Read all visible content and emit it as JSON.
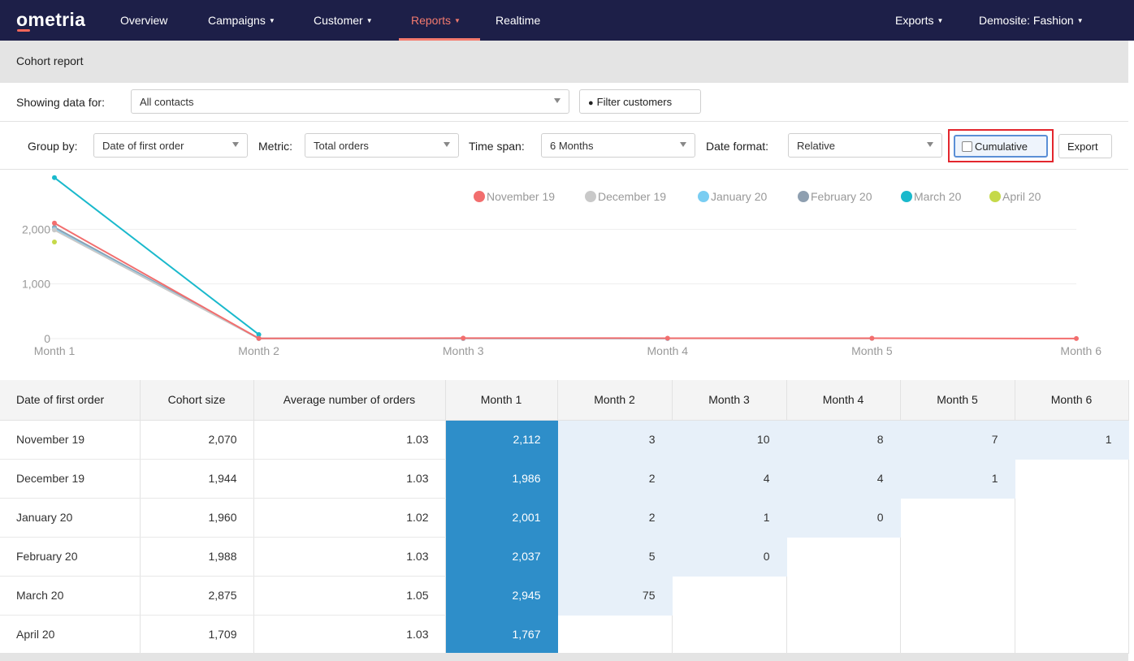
{
  "nav": {
    "logo": "ometria",
    "items": [
      {
        "label": "Overview",
        "dropdown": false,
        "active": false
      },
      {
        "label": "Campaigns",
        "dropdown": true,
        "active": false
      },
      {
        "label": "Customer",
        "dropdown": true,
        "active": false
      },
      {
        "label": "Reports",
        "dropdown": true,
        "active": true
      },
      {
        "label": "Realtime",
        "dropdown": false,
        "active": false
      }
    ],
    "right_items": [
      {
        "label": "Exports",
        "dropdown": true
      },
      {
        "label": "Demosite: Fashion",
        "dropdown": true
      }
    ],
    "active_color": "#f47a6e",
    "background": "#1d1f48"
  },
  "page_title": "Cohort report",
  "filters": {
    "showing_label": "Showing data for:",
    "contacts_value": "All contacts",
    "filter_button": "Filter customers",
    "group_by_label": "Group by:",
    "group_by_value": "Date of first order",
    "metric_label": "Metric:",
    "metric_value": "Total orders",
    "time_span_label": "Time span:",
    "time_span_value": "6 Months",
    "date_format_label": "Date format:",
    "date_format_value": "Relative",
    "cumulative_label": "Cumulative",
    "cumulative_checked": false,
    "export_button": "Export"
  },
  "chart_data": {
    "type": "line",
    "x": [
      "Month 1",
      "Month 2",
      "Month 3",
      "Month 4",
      "Month 5",
      "Month 6"
    ],
    "yticks": [
      "0",
      "1,000",
      "2,000"
    ],
    "ylim": [
      0,
      3000
    ],
    "grid": true,
    "legend_position": "top-right",
    "series": [
      {
        "name": "November 19",
        "color": "#f26e6e",
        "values": [
          2112,
          3,
          10,
          8,
          7,
          1
        ]
      },
      {
        "name": "December 19",
        "color": "#c9c9c9",
        "values": [
          1986,
          2,
          4,
          4,
          1,
          null
        ]
      },
      {
        "name": "January 20",
        "color": "#79cdf2",
        "values": [
          2001,
          2,
          1,
          0,
          null,
          null
        ]
      },
      {
        "name": "February 20",
        "color": "#8e9fb0",
        "values": [
          2037,
          5,
          0,
          null,
          null,
          null
        ]
      },
      {
        "name": "March 20",
        "color": "#1ab9cc",
        "values": [
          2945,
          75,
          null,
          null,
          null,
          null
        ]
      },
      {
        "name": "April 20",
        "color": "#c5d94a",
        "values": [
          1767,
          null,
          null,
          null,
          null,
          null
        ]
      }
    ]
  },
  "table": {
    "headers": [
      "Date of first order",
      "Cohort size",
      "Average number of orders",
      "Month 1",
      "Month 2",
      "Month 3",
      "Month 4",
      "Month 5",
      "Month 6"
    ],
    "rows": [
      {
        "name": "November 19",
        "size": "2,070",
        "avg": "1.03",
        "months": [
          "2,112",
          "3",
          "10",
          "8",
          "7",
          "1"
        ]
      },
      {
        "name": "December 19",
        "size": "1,944",
        "avg": "1.03",
        "months": [
          "1,986",
          "2",
          "4",
          "4",
          "1"
        ]
      },
      {
        "name": "January 20",
        "size": "1,960",
        "avg": "1.02",
        "months": [
          "2,001",
          "2",
          "1",
          "0"
        ]
      },
      {
        "name": "February 20",
        "size": "1,988",
        "avg": "1.03",
        "months": [
          "2,037",
          "5",
          "0"
        ]
      },
      {
        "name": "March 20",
        "size": "2,875",
        "avg": "1.05",
        "months": [
          "2,945",
          "75"
        ]
      },
      {
        "name": "April 20",
        "size": "1,709",
        "avg": "1.03",
        "months": [
          "1,767"
        ]
      }
    ],
    "month1_color": "#2e8ec9",
    "other_months_color": "#e7f0f9"
  }
}
